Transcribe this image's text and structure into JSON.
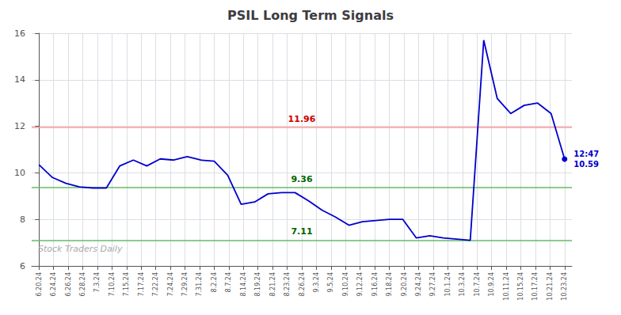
{
  "chart_data": {
    "type": "line",
    "title": "PSIL Long Term Signals",
    "color": "#0000cc",
    "grid": true,
    "xlim": [
      -0.5,
      36.5
    ],
    "xticks": [
      {
        "value": 0,
        "label": "6.20.24"
      },
      {
        "value": 1,
        "label": "6.24.24"
      },
      {
        "value": 2,
        "label": "6.26.24"
      },
      {
        "value": 3,
        "label": "6.28.24"
      },
      {
        "value": 4,
        "label": "7.3.24"
      },
      {
        "value": 5,
        "label": "7.10.24"
      },
      {
        "value": 6,
        "label": "7.15.24"
      },
      {
        "value": 7,
        "label": "7.17.24"
      },
      {
        "value": 8,
        "label": "7.22.24"
      },
      {
        "value": 9,
        "label": "7.24.24"
      },
      {
        "value": 10,
        "label": "7.29.24"
      },
      {
        "value": 11,
        "label": "7.31.24"
      },
      {
        "value": 12,
        "label": "8.2.24"
      },
      {
        "value": 13,
        "label": "8.7.24"
      },
      {
        "value": 14,
        "label": "8.14.24"
      },
      {
        "value": 15,
        "label": "8.19.24"
      },
      {
        "value": 16,
        "label": "8.21.24"
      },
      {
        "value": 17,
        "label": "8.23.24"
      },
      {
        "value": 18,
        "label": "8.26.24"
      },
      {
        "value": 19,
        "label": "9.3.24"
      },
      {
        "value": 20,
        "label": "9.5.24"
      },
      {
        "value": 21,
        "label": "9.10.24"
      },
      {
        "value": 22,
        "label": "9.12.24"
      },
      {
        "value": 23,
        "label": "9.16.24"
      },
      {
        "value": 24,
        "label": "9.18.24"
      },
      {
        "value": 25,
        "label": "9.20.24"
      },
      {
        "value": 26,
        "label": "9.24.24"
      },
      {
        "value": 27,
        "label": "9.27.24"
      },
      {
        "value": 28,
        "label": "10.1.24"
      },
      {
        "value": 29,
        "label": "10.3.24"
      },
      {
        "value": 30,
        "label": "10.7.24"
      },
      {
        "value": 31,
        "label": "10.9.24"
      },
      {
        "value": 32,
        "label": "10.11.24"
      },
      {
        "value": 33,
        "label": "10.15.24"
      },
      {
        "value": 34,
        "label": "10.17.24"
      },
      {
        "value": 35,
        "label": "10.21.24"
      },
      {
        "value": 36,
        "label": "10.23.24"
      }
    ],
    "ylim": [
      6,
      16
    ],
    "yticks": [
      6,
      8,
      10,
      12,
      14,
      16
    ],
    "x": [
      0,
      0.9230769230769231,
      1.8461538461538463,
      2.769230769230769,
      3.6923076923076925,
      4.615384615384615,
      5.538461538461538,
      6.461538461538462,
      7.384615384615385,
      8.307692307692308,
      9.23076923076923,
      10.153846153846153,
      11.076923076923077,
      12,
      12.923076923076923,
      13.846153846153847,
      14.76923076923077,
      15.692307692307692,
      16.615384615384617,
      17.53846153846154,
      18.46153846153846,
      19.384615384615383,
      20.307692307692307,
      21.23076923076923,
      22.153846153846153,
      23.076923076923077,
      24,
      24.923076923076923,
      25.846153846153847,
      26.76923076923077,
      27.692307692307693,
      28.615384615384617,
      29.53846153846154,
      30.46153846153846,
      31.384615384615383,
      32.30769230769231,
      33.23076923076923,
      34.15384615384615,
      35.07692307692308,
      36
    ],
    "values": [
      10.35,
      9.8,
      9.55,
      9.4,
      9.35,
      9.35,
      10.3,
      10.55,
      10.3,
      10.6,
      10.55,
      10.7,
      10.55,
      10.5,
      9.9,
      8.65,
      8.75,
      9.1,
      9.15,
      9.15,
      8.8,
      8.4,
      8.1,
      7.75,
      7.9,
      7.95,
      8.0,
      8.0,
      7.2,
      7.3,
      7.2,
      7.15,
      7.1,
      15.7,
      13.2,
      12.55,
      12.9,
      13.0,
      12.55,
      10.59
    ],
    "reference_lines": [
      {
        "y": 11.96,
        "label": "11.96",
        "color": "#ff9999",
        "label_color": "#cc0000"
      },
      {
        "y": 9.36,
        "label": "9.36",
        "color": "#66bb66",
        "label_color": "#006600"
      },
      {
        "y": 7.11,
        "label": "7.11",
        "color": "#66bb66",
        "label_color": "#006600"
      }
    ],
    "annotations": [
      {
        "text": "12:47\n10.59",
        "x": 36,
        "y": 10.59,
        "color": "#0000cc"
      }
    ],
    "watermark": {
      "text": "Stock Traders Daily",
      "color": "#aaaaaa"
    }
  }
}
